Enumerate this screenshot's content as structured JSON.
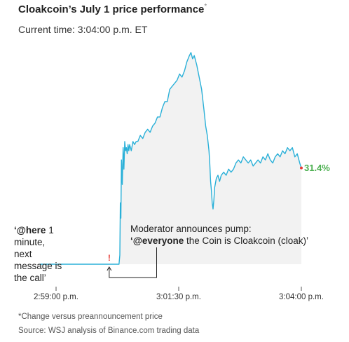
{
  "header": {
    "title": "Cloakcoin’s July 1 price performance",
    "title_mark": "*",
    "subtitle": "Current time: 3:04:00 p.m. ET"
  },
  "annotations": {
    "here_quote": "‘@here 1 minute, next message is the call’",
    "here_bold": "‘@here",
    "here_rest": " 1 minute, next message is the call’",
    "moderator_line": "Moderator announces pump:",
    "everyone_bold": "‘@everyone",
    "everyone_rest": " the Coin is Cloakcoin (cloak)’",
    "alert_mark": "!"
  },
  "footer": {
    "note": "*Change versus preannouncement price",
    "source": "Source: WSJ analysis of Binance.com trading data"
  },
  "colors": {
    "line": "#2ab0d8",
    "area": "#f2f2f2",
    "final_label": "#4caf50",
    "alert": "#e53935"
  },
  "chart_data": {
    "type": "line",
    "title": "Cloakcoin’s July 1 price performance",
    "xlabel": "",
    "ylabel": "Change versus preannouncement price (%)",
    "x_ticks": [
      {
        "label": "2:59:00 p.m.",
        "t": 0
      },
      {
        "label": "3:01:30 p.m.",
        "t": 150
      },
      {
        "label": "3:04:00 p.m.",
        "t": 300
      }
    ],
    "x_unit": "seconds after 2:59:00 p.m.",
    "ylim": [
      0,
      70
    ],
    "final_label": "31.4%",
    "final_value": 31.4,
    "points": [
      [
        -20,
        0
      ],
      [
        0,
        0
      ],
      [
        20,
        0
      ],
      [
        40,
        0
      ],
      [
        60,
        0
      ],
      [
        77,
        0
      ],
      [
        78,
        3
      ],
      [
        78.6,
        20
      ],
      [
        79.3,
        15
      ],
      [
        80,
        34
      ],
      [
        81,
        26
      ],
      [
        82,
        38
      ],
      [
        83,
        31
      ],
      [
        84,
        40
      ],
      [
        85,
        37
      ],
      [
        86,
        38
      ],
      [
        87,
        36
      ],
      [
        88,
        39
      ],
      [
        89,
        37
      ],
      [
        90,
        39
      ],
      [
        92,
        37
      ],
      [
        94,
        40
      ],
      [
        96,
        39
      ],
      [
        98,
        40
      ],
      [
        100,
        40
      ],
      [
        103,
        42
      ],
      [
        106,
        41
      ],
      [
        109,
        43
      ],
      [
        112,
        44
      ],
      [
        115,
        43
      ],
      [
        118,
        45
      ],
      [
        121,
        46
      ],
      [
        124,
        48
      ],
      [
        127,
        48
      ],
      [
        130,
        51
      ],
      [
        133,
        53
      ],
      [
        136,
        53
      ],
      [
        139,
        57
      ],
      [
        142,
        58
      ],
      [
        145,
        59
      ],
      [
        148,
        60
      ],
      [
        151,
        62
      ],
      [
        154,
        61
      ],
      [
        157,
        63
      ],
      [
        160,
        66
      ],
      [
        163,
        68
      ],
      [
        165,
        69
      ],
      [
        167,
        67
      ],
      [
        169,
        68
      ],
      [
        172,
        65
      ],
      [
        175,
        61
      ],
      [
        178,
        57
      ],
      [
        181,
        50
      ],
      [
        183,
        45
      ],
      [
        185,
        42
      ],
      [
        187,
        37
      ],
      [
        188,
        33
      ],
      [
        189,
        27
      ],
      [
        190,
        24
      ],
      [
        191,
        20
      ],
      [
        192,
        18
      ],
      [
        193,
        21
      ],
      [
        194,
        25
      ],
      [
        196,
        28
      ],
      [
        198,
        29
      ],
      [
        200,
        27
      ],
      [
        202,
        29
      ],
      [
        205,
        30
      ],
      [
        208,
        29
      ],
      [
        211,
        31
      ],
      [
        214,
        30
      ],
      [
        217,
        31
      ],
      [
        220,
        33
      ],
      [
        223,
        34
      ],
      [
        226,
        33
      ],
      [
        229,
        35
      ],
      [
        232,
        34
      ],
      [
        235,
        33
      ],
      [
        238,
        34
      ],
      [
        241,
        32
      ],
      [
        244,
        33
      ],
      [
        247,
        34
      ],
      [
        250,
        33
      ],
      [
        253,
        35
      ],
      [
        256,
        34
      ],
      [
        259,
        36
      ],
      [
        262,
        34
      ],
      [
        265,
        33
      ],
      [
        268,
        35
      ],
      [
        271,
        36
      ],
      [
        274,
        35
      ],
      [
        277,
        37
      ],
      [
        280,
        36
      ],
      [
        283,
        38
      ],
      [
        286,
        37
      ],
      [
        289,
        38
      ],
      [
        292,
        35
      ],
      [
        295,
        36
      ],
      [
        298,
        33
      ],
      [
        300,
        31.4
      ]
    ]
  }
}
